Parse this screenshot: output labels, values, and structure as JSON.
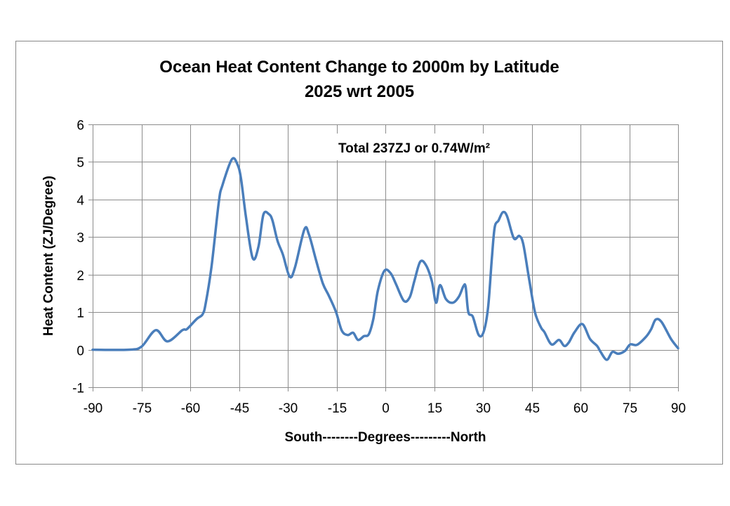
{
  "chart_data": {
    "type": "line",
    "title": "Ocean Heat Content Change to 2000m by Latitude",
    "subtitle": "2025 wrt 2005",
    "xlabel": "South--------Degrees---------North",
    "ylabel": "Heat Content (ZJ/Degree)",
    "annotation": "Total 237ZJ or 0.74W/m²",
    "xlim": [
      -90,
      90
    ],
    "ylim": [
      -1,
      6
    ],
    "xticks": [
      -90,
      -75,
      -60,
      -45,
      -30,
      -15,
      0,
      15,
      30,
      45,
      60,
      75,
      90
    ],
    "yticks": [
      -1,
      0,
      1,
      2,
      3,
      4,
      5,
      6
    ],
    "grid": true,
    "legend": "none",
    "line_color": "#4a7ebb",
    "series": [
      {
        "x": [
          -90,
          -79,
          -75,
          -70.6,
          -67,
          -62.4,
          -61,
          -58,
          -56.2,
          -55.2,
          -53.4,
          -51.2,
          -50.1,
          -47.2,
          -45.5,
          -44.4,
          -42.9,
          -40.8,
          -39,
          -37.5,
          -35.8,
          -34.7,
          -33.2,
          -31.5,
          -29.4,
          -27.8,
          -24.9,
          -23.5,
          -21.3,
          -19.2,
          -17.4,
          -15.2,
          -13.4,
          -11.6,
          -9.9,
          -8.4,
          -6.6,
          -5.1,
          -3.7,
          -2.3,
          -0.3,
          1.6,
          3.2,
          5.7,
          7.5,
          8.9,
          10.7,
          12.5,
          14.3,
          15.6,
          16.8,
          18.6,
          20.7,
          22.6,
          24.0,
          24.7,
          25.5,
          26.9,
          28.7,
          30.2,
          31.6,
          32.7,
          33.6,
          34.8,
          36.1,
          37.4,
          39.5,
          41.2,
          42.4,
          44.2,
          46.0,
          47.8,
          48.9,
          51.1,
          53.4,
          55.0,
          56.4,
          58.2,
          60.6,
          62.9,
          65.1,
          66.2,
          68.1,
          69.8,
          71.6,
          73.7,
          75.3,
          77.4,
          80.2,
          81.7,
          83.1,
          84.9,
          87.8,
          90
        ],
        "y": [
          0,
          0,
          0.08,
          0.52,
          0.22,
          0.52,
          0.55,
          0.82,
          0.94,
          1.25,
          2.25,
          3.94,
          4.38,
          5.07,
          4.94,
          4.56,
          3.56,
          2.44,
          2.75,
          3.6,
          3.61,
          3.44,
          2.91,
          2.53,
          1.94,
          2.19,
          3.2,
          3.07,
          2.38,
          1.76,
          1.44,
          1.01,
          0.51,
          0.39,
          0.45,
          0.26,
          0.36,
          0.41,
          0.82,
          1.57,
          2.1,
          2.04,
          1.76,
          1.3,
          1.4,
          1.82,
          2.34,
          2.25,
          1.82,
          1.25,
          1.72,
          1.35,
          1.25,
          1.41,
          1.69,
          1.67,
          1.0,
          0.88,
          0.39,
          0.47,
          1.13,
          2.38,
          3.25,
          3.44,
          3.66,
          3.56,
          2.97,
          3.03,
          2.81,
          1.88,
          1.0,
          0.6,
          0.47,
          0.14,
          0.26,
          0.1,
          0.19,
          0.47,
          0.68,
          0.29,
          0.1,
          -0.06,
          -0.27,
          -0.06,
          -0.11,
          -0.03,
          0.14,
          0.13,
          0.35,
          0.54,
          0.8,
          0.74,
          0.29,
          0.04
        ]
      }
    ]
  }
}
